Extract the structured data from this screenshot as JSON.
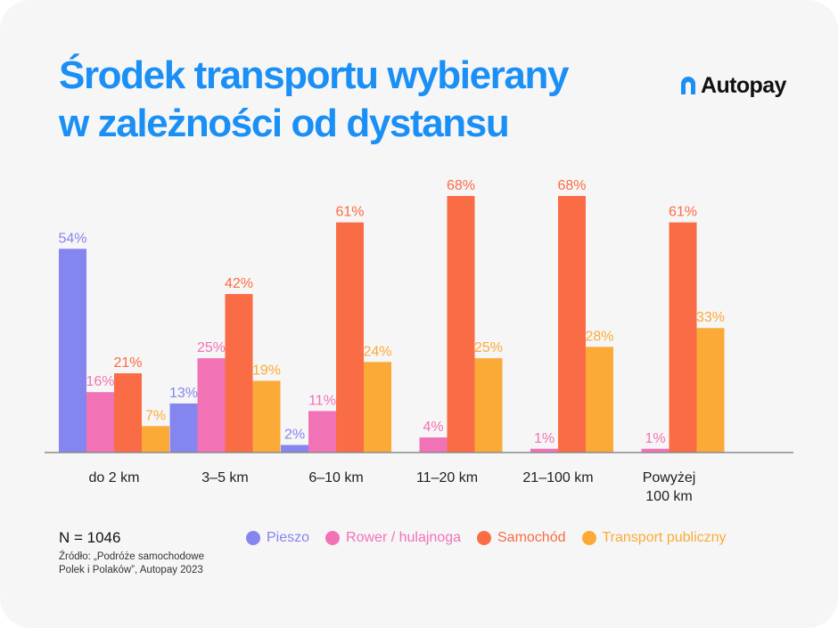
{
  "header": {
    "title_line1": "Środek transportu wybierany",
    "title_line2": "w zależności od dystansu",
    "logo_text": "Autopay"
  },
  "footer": {
    "n_label": "N = 1046",
    "source_line1": "Źródło: „Podróże samochodowe",
    "source_line2": "Polek i Polaków”, Autopay 2023"
  },
  "colors": {
    "title": "#1a8ff5",
    "pieszo": "#8585ef",
    "rower": "#f272b6",
    "samochod": "#fa6c46",
    "transport": "#fcaa37"
  },
  "chart_data": {
    "type": "bar",
    "categories": [
      [
        "do 2 km"
      ],
      [
        "3–5 km"
      ],
      [
        "6–10 km"
      ],
      [
        "11–20 km"
      ],
      [
        "21–100 km"
      ],
      [
        "Powyżej",
        "100 km"
      ]
    ],
    "series": [
      {
        "name": "Pieszo",
        "color": "#8585ef",
        "values": [
          54,
          13,
          2,
          null,
          null,
          null
        ]
      },
      {
        "name": "Rower / hulajnoga",
        "color": "#f272b6",
        "values": [
          16,
          25,
          11,
          4,
          1,
          1
        ]
      },
      {
        "name": "Samochód",
        "color": "#fa6c46",
        "values": [
          21,
          42,
          61,
          68,
          68,
          61
        ]
      },
      {
        "name": "Transport publiczny",
        "color": "#fcaa37",
        "values": [
          7,
          19,
          24,
          25,
          28,
          33
        ]
      }
    ],
    "value_suffix": "%",
    "ylim": [
      0,
      70
    ],
    "grid": false,
    "legend_position": "bottom"
  }
}
